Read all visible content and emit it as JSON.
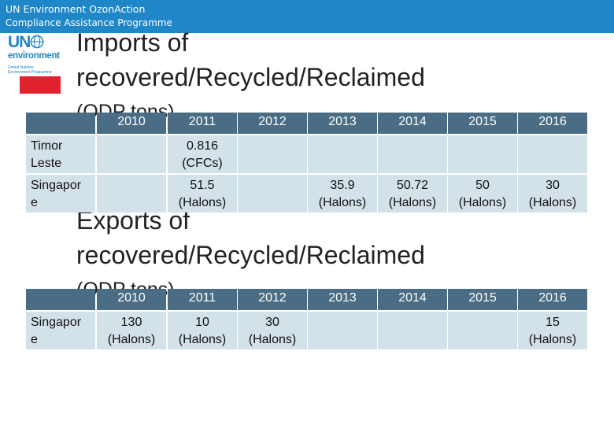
{
  "header": {
    "org_line1": "UN Environment OzonAction",
    "org_line2": "Compliance Assistance Programme"
  },
  "logo": {
    "un": "UN",
    "environment": "environment",
    "fine_print": "United Nations Environment Programme"
  },
  "colors": {
    "header_bar": "#1f86c8",
    "accent_red": "#e0222e",
    "table_header": "#4a6d85",
    "table_cell": "#d3e1e8"
  },
  "imports": {
    "title_line1": "Imports of",
    "title_line2": "recovered/Recycled/Reclaimed",
    "title_unit": "(ODP tons)",
    "years": [
      "2010",
      "2011",
      "2012",
      "2013",
      "2014",
      "2015",
      "2016"
    ],
    "rows": [
      {
        "country_line1": "Timor",
        "country_line2": "Leste",
        "cells": [
          {
            "value": "",
            "note": ""
          },
          {
            "value": "0.816",
            "note": "(CFCs)"
          },
          {
            "value": "",
            "note": ""
          },
          {
            "value": "",
            "note": ""
          },
          {
            "value": "",
            "note": ""
          },
          {
            "value": "",
            "note": ""
          },
          {
            "value": "",
            "note": ""
          }
        ]
      },
      {
        "country_line1": "Singapor",
        "country_line2": "e",
        "cells": [
          {
            "value": "",
            "note": ""
          },
          {
            "value": "51.5",
            "note": "(Halons)"
          },
          {
            "value": "",
            "note": ""
          },
          {
            "value": "35.9",
            "note": "(Halons)"
          },
          {
            "value": "50.72",
            "note": "(Halons)"
          },
          {
            "value": "50",
            "note": "(Halons)"
          },
          {
            "value": "30",
            "note": "(Halons)"
          }
        ]
      }
    ]
  },
  "exports": {
    "title_line1": "Exports of",
    "title_line2": "recovered/Recycled/Reclaimed",
    "title_unit": "(ODP tons)",
    "years": [
      "2010",
      "2011",
      "2012",
      "2013",
      "2014",
      "2015",
      "2016"
    ],
    "rows": [
      {
        "country_line1": "Singapor",
        "country_line2": "e",
        "cells": [
          {
            "value": "130",
            "note": "(Halons)"
          },
          {
            "value": "10",
            "note": "(Halons)"
          },
          {
            "value": "30",
            "note": "(Halons)"
          },
          {
            "value": "",
            "note": ""
          },
          {
            "value": "",
            "note": ""
          },
          {
            "value": "",
            "note": ""
          },
          {
            "value": "15",
            "note": "(Halons)"
          }
        ]
      }
    ]
  }
}
